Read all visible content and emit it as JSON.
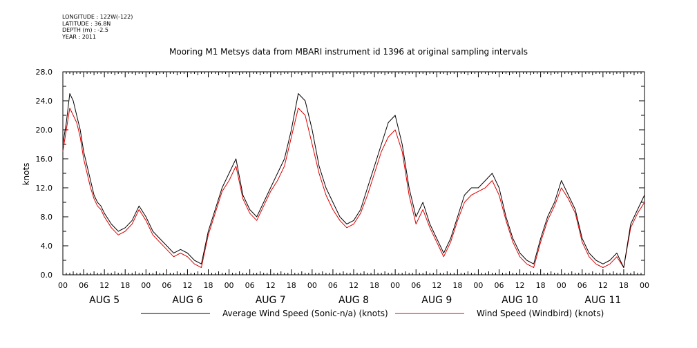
{
  "header": {
    "longitude": "LONGITUDE : 122W(-122)",
    "latitude": "LATITUDE : 36.8N",
    "depth": "DEPTH (m) : -2.5",
    "year": "YEAR : 2011"
  },
  "chart_data": {
    "type": "line",
    "title": "Mooring M1 Metsys data from MBARI instrument id 1396 at original sampling intervals",
    "xlabel": "",
    "ylabel": "knots",
    "ylim": [
      0,
      28
    ],
    "xlim_hours": [
      0,
      168
    ],
    "yticks": [
      "0.0",
      "4.0",
      "8.0",
      "12.0",
      "16.0",
      "20.0",
      "24.0",
      "28.0"
    ],
    "ytick_values": [
      0,
      4,
      8,
      12,
      16,
      20,
      24,
      28
    ],
    "hour_tick_labels": [
      "00",
      "06",
      "12",
      "18",
      "00",
      "06",
      "12",
      "18",
      "00",
      "06",
      "12",
      "18",
      "00",
      "06",
      "12",
      "18",
      "00",
      "06",
      "12",
      "18",
      "00",
      "06",
      "12",
      "18",
      "00",
      "06",
      "12",
      "18",
      "00"
    ],
    "day_labels": [
      "AUG  5",
      "AUG  6",
      "AUG  7",
      "AUG  8",
      "AUG  9",
      "AUG 10",
      "AUG 11"
    ],
    "grid": false,
    "legend_position": "bottom",
    "series": [
      {
        "name": "Average Wind Speed (Sonic-n/a) (knots)",
        "color": "#000000",
        "x_hours": [
          0,
          1,
          2,
          3,
          4,
          5,
          6,
          7,
          8,
          9,
          10,
          11,
          12,
          14,
          16,
          18,
          20,
          22,
          24,
          26,
          28,
          30,
          32,
          34,
          36,
          38,
          40,
          42,
          44,
          46,
          48,
          50,
          52,
          54,
          56,
          58,
          60,
          62,
          64,
          66,
          68,
          70,
          72,
          74,
          76,
          78,
          80,
          82,
          84,
          86,
          88,
          90,
          92,
          94,
          96,
          98,
          100,
          102,
          104,
          106,
          108,
          110,
          112,
          114,
          116,
          118,
          120,
          122,
          124,
          126,
          128,
          130,
          132,
          134,
          136,
          138,
          140,
          142,
          144,
          146,
          148,
          150,
          152,
          154,
          156,
          158,
          160,
          162,
          164,
          166,
          168
        ],
        "values": [
          18,
          21,
          25,
          24,
          22,
          20,
          17,
          15,
          13,
          11,
          10,
          9.5,
          8.5,
          7,
          6,
          6.5,
          7.5,
          9.5,
          8,
          6,
          5,
          4,
          3,
          3.5,
          3,
          2,
          1.5,
          6,
          9,
          12,
          14,
          16,
          11,
          9,
          8,
          10,
          12,
          14,
          16,
          20,
          25,
          24,
          20,
          15,
          12,
          10,
          8,
          7,
          7.5,
          9,
          12,
          15,
          18,
          21,
          22,
          18,
          12,
          8,
          10,
          7,
          5,
          3,
          5,
          8,
          11,
          12,
          12,
          13,
          14,
          12,
          8,
          5,
          3,
          2,
          1.5,
          5,
          8,
          10,
          13,
          11,
          9,
          5,
          3,
          2,
          1.5,
          2,
          3,
          1,
          7,
          9,
          11
        ]
      },
      {
        "name": "Wind Speed (Windbird) (knots)",
        "color": "#dd0000",
        "x_hours": [
          0,
          1,
          2,
          3,
          4,
          5,
          6,
          7,
          8,
          9,
          10,
          11,
          12,
          14,
          16,
          18,
          20,
          22,
          24,
          26,
          28,
          30,
          32,
          34,
          36,
          38,
          40,
          42,
          44,
          46,
          48,
          50,
          52,
          54,
          56,
          58,
          60,
          62,
          64,
          66,
          68,
          70,
          72,
          74,
          76,
          78,
          80,
          82,
          84,
          86,
          88,
          90,
          92,
          94,
          96,
          98,
          100,
          102,
          104,
          106,
          108,
          110,
          112,
          114,
          116,
          118,
          120,
          122,
          124,
          126,
          128,
          130,
          132,
          134,
          136,
          138,
          140,
          142,
          144,
          146,
          148,
          150,
          152,
          154,
          156,
          158,
          160,
          162,
          164,
          166,
          168
        ],
        "values": [
          17,
          20,
          23,
          22,
          21,
          19,
          16,
          14,
          12,
          10.5,
          9.5,
          9,
          8,
          6.5,
          5.5,
          6,
          7,
          9,
          7.5,
          5.5,
          4.5,
          3.5,
          2.5,
          3,
          2.5,
          1.5,
          1,
          5.5,
          8.5,
          11.5,
          13,
          15,
          10.5,
          8.5,
          7.5,
          9.5,
          11.5,
          13,
          15,
          19,
          23,
          22,
          18,
          14,
          11,
          9,
          7.5,
          6.5,
          7,
          8.5,
          11,
          14,
          17,
          19,
          20,
          17,
          11,
          7,
          9,
          6.5,
          4.5,
          2.5,
          4.5,
          7.5,
          10,
          11,
          11.5,
          12,
          13,
          11,
          7.5,
          4.5,
          2.5,
          1.5,
          1,
          4.5,
          7.5,
          9.5,
          12,
          10.5,
          8.5,
          4.5,
          2.5,
          1.5,
          1,
          1.5,
          2.5,
          1,
          6.5,
          8.5,
          10
        ]
      }
    ]
  }
}
